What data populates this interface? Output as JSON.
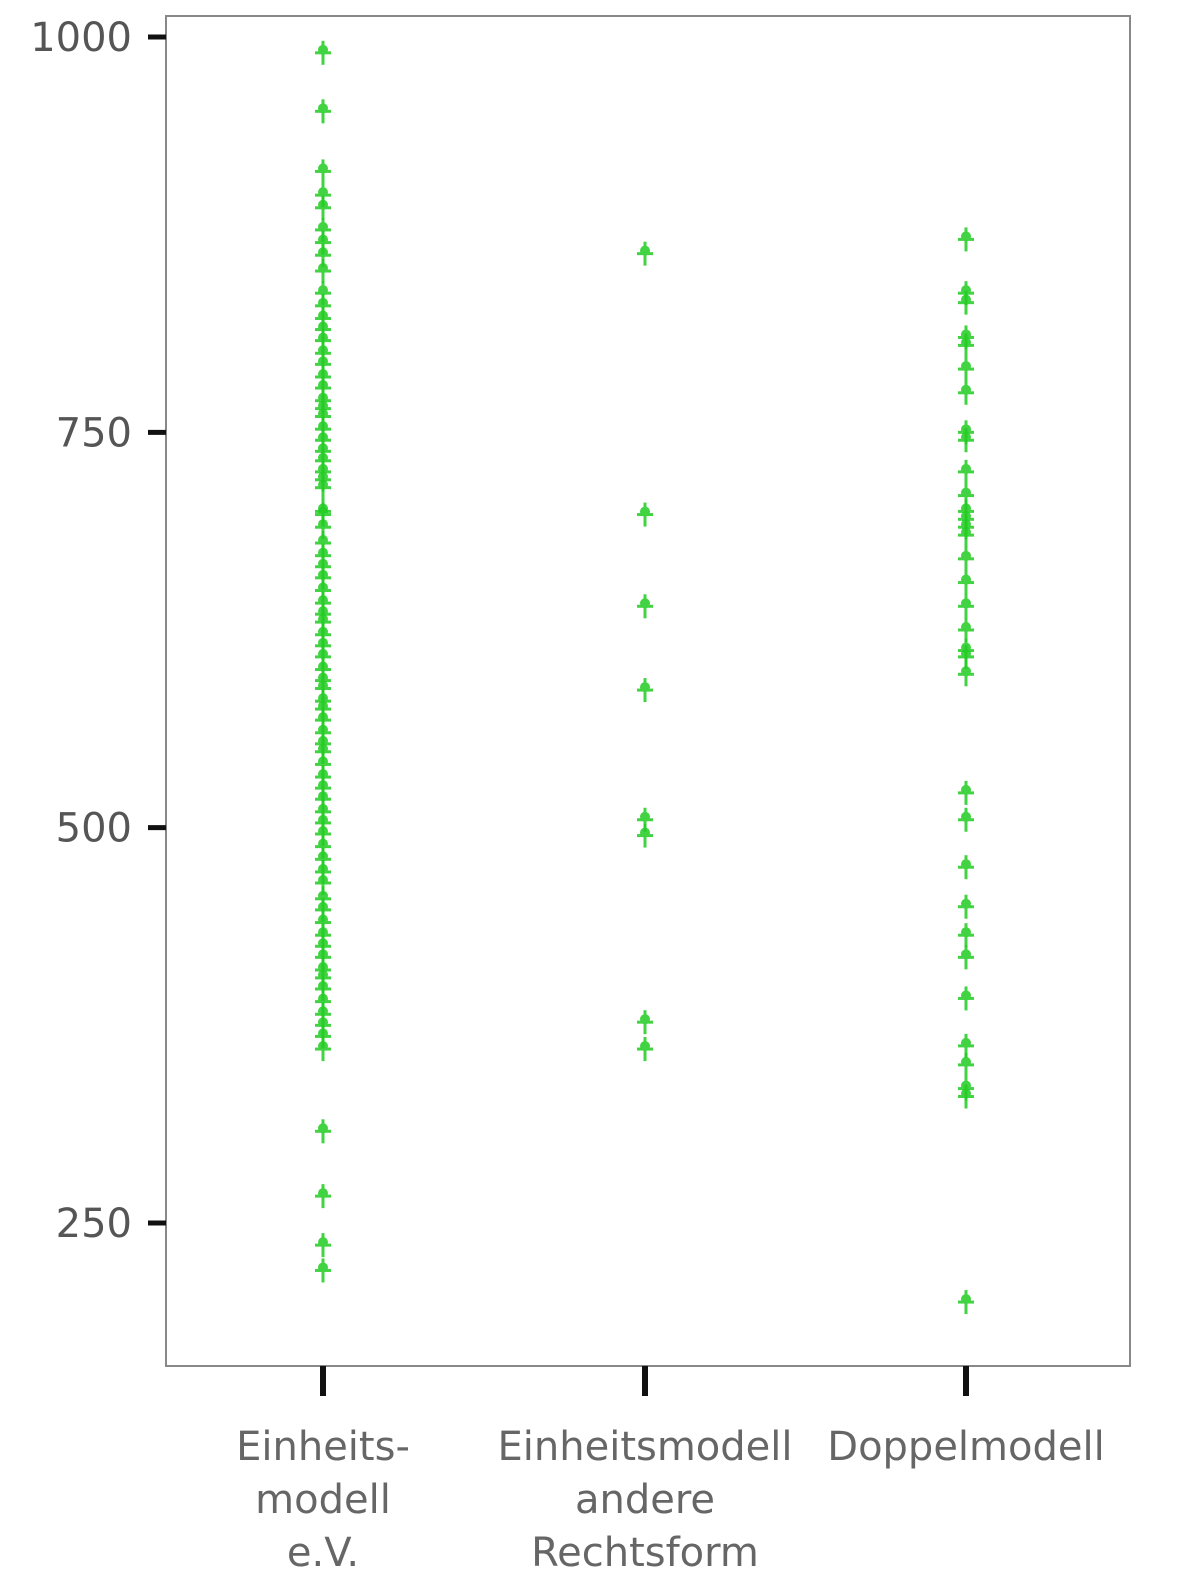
{
  "chart_data": {
    "type": "scatter",
    "title": "",
    "xlabel": "",
    "ylabel": "",
    "ylim": [
      160,
      1015
    ],
    "yticks": [
      250,
      500,
      750,
      1000
    ],
    "grid": false,
    "legend": "none",
    "marker_color": "#22cc22",
    "categories": [
      [
        "Einheits-",
        "modell",
        "e.V."
      ],
      [
        "Einheitsmodell",
        "andere",
        "Rechtsform"
      ],
      [
        "Doppelmodell"
      ]
    ],
    "series": [
      {
        "category_index": 0,
        "values": [
          990,
          953,
          915,
          900,
          892,
          878,
          870,
          862,
          852,
          838,
          830,
          822,
          815,
          808,
          800,
          793,
          785,
          778,
          770,
          765,
          760,
          752,
          745,
          738,
          732,
          725,
          720,
          715,
          700,
          698,
          690,
          680,
          672,
          665,
          658,
          650,
          642,
          635,
          630,
          622,
          615,
          608,
          600,
          593,
          588,
          580,
          575,
          568,
          560,
          553,
          548,
          540,
          532,
          525,
          518,
          510,
          503,
          496,
          488,
          480,
          472,
          465,
          455,
          448,
          440,
          432,
          425,
          418,
          410,
          405,
          398,
          390,
          382,
          375,
          368,
          360,
          308,
          267,
          236,
          220
        ]
      },
      {
        "category_index": 1,
        "values": [
          863,
          698,
          640,
          587,
          505,
          495,
          377,
          360
        ]
      },
      {
        "category_index": 2,
        "values": [
          872,
          838,
          832,
          810,
          805,
          790,
          775,
          750,
          745,
          725,
          710,
          700,
          695,
          690,
          685,
          670,
          655,
          640,
          625,
          612,
          608,
          597,
          522,
          505,
          475,
          450,
          432,
          418,
          392,
          362,
          350,
          335,
          330,
          200
        ]
      }
    ]
  }
}
